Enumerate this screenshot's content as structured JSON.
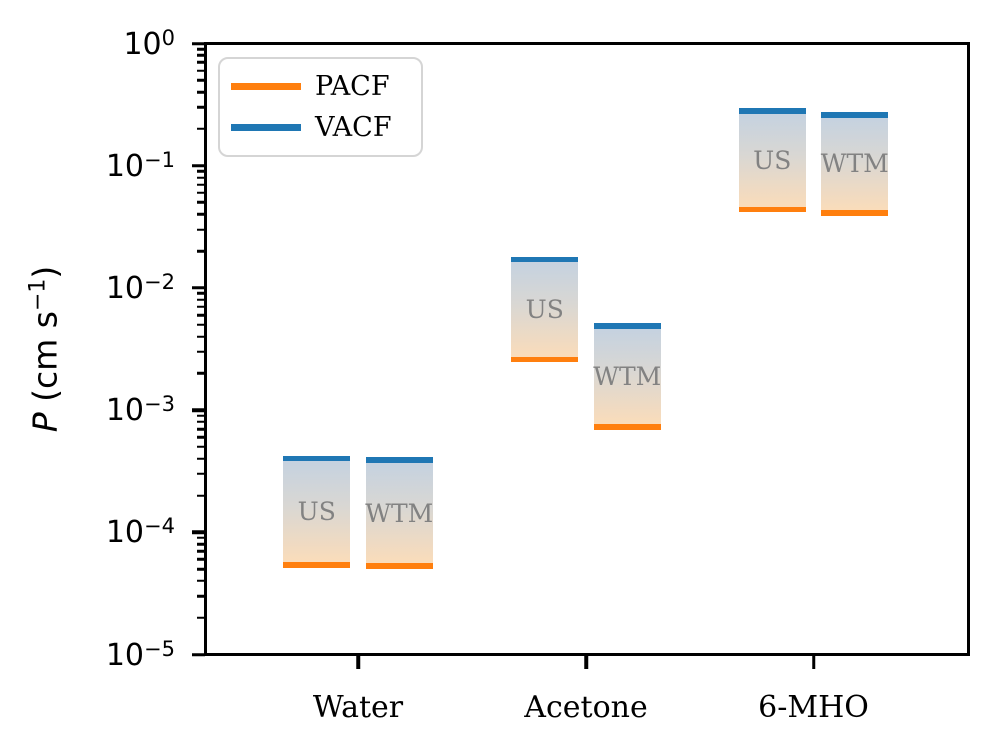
{
  "axis": {
    "ylabel": {
      "italic": "P",
      "mid": " (cm s",
      "sup": "−1",
      "end": ")"
    },
    "y_tick_base": "10",
    "y_tick_exponents": [
      "0",
      "−1",
      "−2",
      "−3",
      "−4",
      "−5"
    ],
    "x_tick_labels": [
      "Water",
      "Acetone",
      "6-MHO"
    ]
  },
  "legend": {
    "items": [
      {
        "label": "PACF",
        "color": "#ff7f0e"
      },
      {
        "label": "VACF",
        "color": "#1f77b4"
      }
    ]
  },
  "chart_data": {
    "type": "bar",
    "subtype": "floating-range-bars-log-scale",
    "title": "",
    "xlabel": "",
    "ylabel": "P (cm s⁻¹)",
    "yscale": "log",
    "ylim": [
      1e-05,
      1
    ],
    "grid": false,
    "legend_position": "upper-left",
    "categories": [
      "Water",
      "Acetone",
      "6-MHO"
    ],
    "legend": [
      {
        "name": "PACF",
        "color": "#ff7f0e",
        "role": "range-bottom-line"
      },
      {
        "name": "VACF",
        "color": "#1f77b4",
        "role": "range-top-line"
      }
    ],
    "bars": [
      {
        "category": "Water",
        "label": "US",
        "pacf": 5.4e-05,
        "vacf": 0.0004
      },
      {
        "category": "Water",
        "label": "WTM",
        "pacf": 5.3e-05,
        "vacf": 0.00039
      },
      {
        "category": "Acetone",
        "label": "US",
        "pacf": 0.0026,
        "vacf": 0.017
      },
      {
        "category": "Acetone",
        "label": "WTM",
        "pacf": 0.00073,
        "vacf": 0.0049
      },
      {
        "category": "6-MHO",
        "label": "US",
        "pacf": 0.044,
        "vacf": 0.28
      },
      {
        "category": "6-MHO",
        "label": "WTM",
        "pacf": 0.041,
        "vacf": 0.26
      }
    ]
  }
}
